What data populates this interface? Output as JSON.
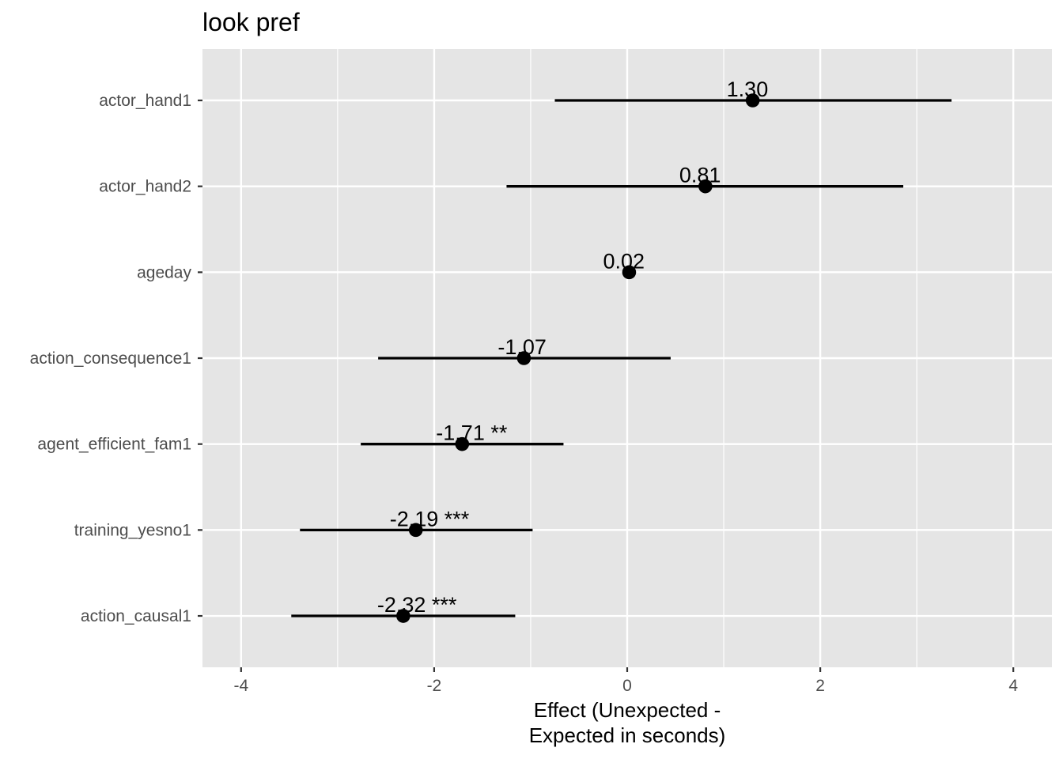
{
  "chart_data": {
    "type": "forest",
    "title": "look pref",
    "xlabel": [
      "Effect (Unexpected -",
      "Expected in seconds)"
    ],
    "ylabel": "",
    "xlim": [
      -4.4,
      4.4
    ],
    "x_ticks": [
      -4,
      -2,
      0,
      2,
      4
    ],
    "x_tick_labels": [
      "-4",
      "-2",
      "0",
      "2",
      "4"
    ],
    "grid": true,
    "categories": [
      "actor_hand1",
      "actor_hand2",
      "ageday",
      "action_consequence1",
      "agent_efficient_fam1",
      "training_yesno1",
      "action_causal1"
    ],
    "estimates": [
      1.3,
      0.81,
      0.02,
      -1.07,
      -1.71,
      -2.19,
      -2.32
    ],
    "ci_low": [
      -0.75,
      -1.25,
      0.02,
      -2.58,
      -2.76,
      -3.39,
      -3.48
    ],
    "ci_high": [
      3.36,
      2.86,
      0.02,
      0.45,
      -0.66,
      -0.98,
      -1.16
    ],
    "labels": [
      "1.30",
      "0.81",
      "0.02",
      "-1.07",
      "-1.71 **",
      "-2.19 ***",
      "-2.32 ***"
    ],
    "colors": {
      "panel": "#e5e5e5",
      "grid": "#ffffff",
      "mark": "#000000",
      "tick_text": "#4d4d4d"
    }
  }
}
